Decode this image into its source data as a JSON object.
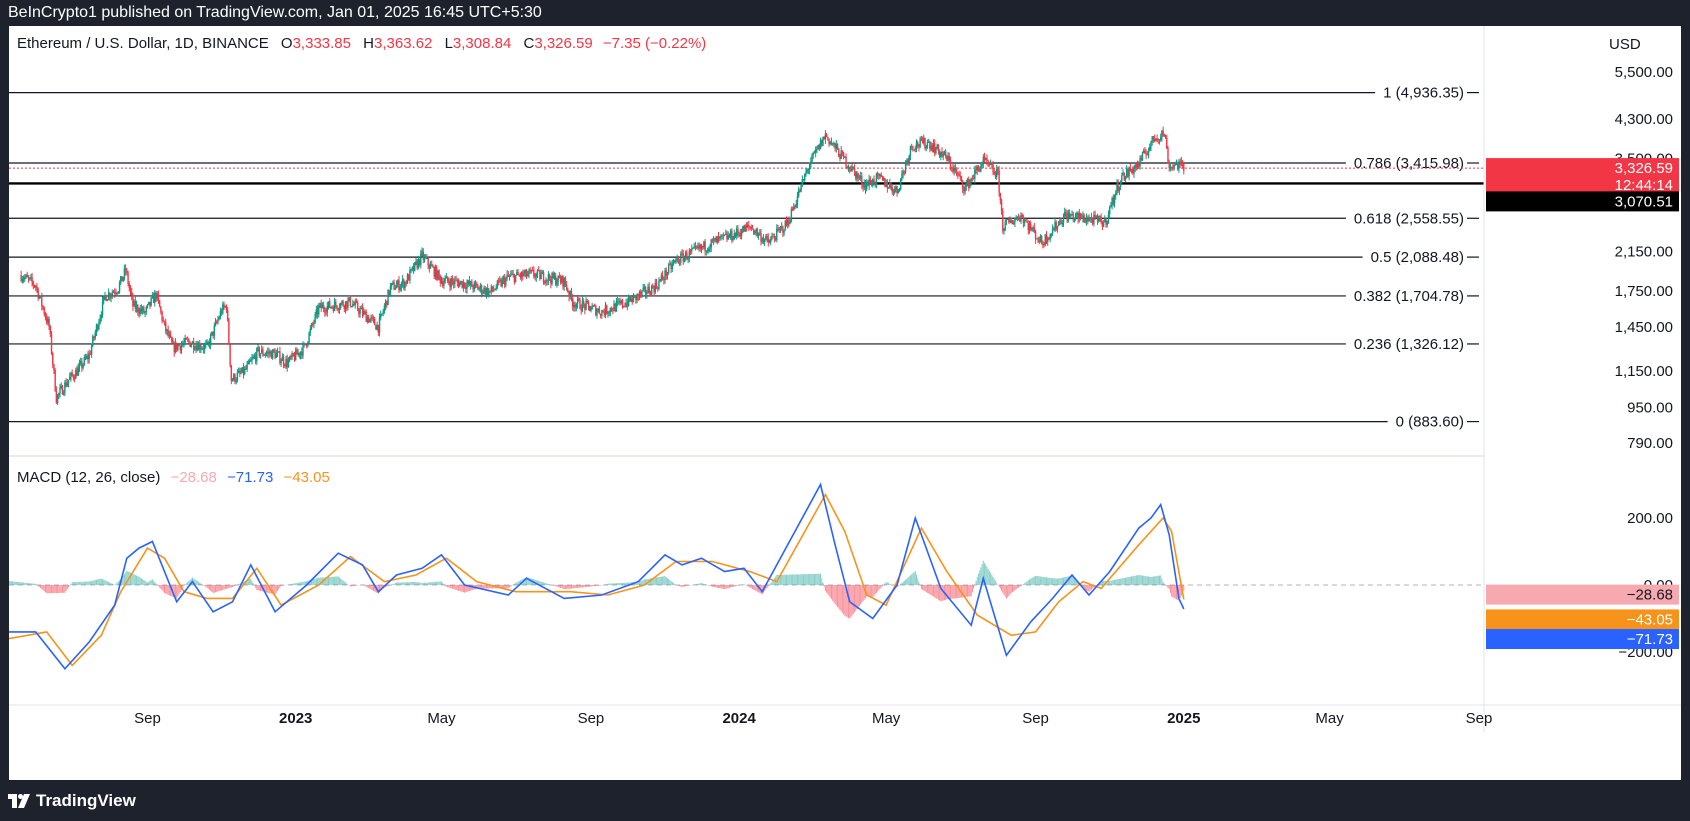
{
  "header": {
    "published": "BeInCrypto1 published on TradingView.com, Jan 01, 2025 16:45 UTC+5:30"
  },
  "footer": {
    "brand": "TradingView"
  },
  "price_legend": {
    "symbol": "Ethereum / U.S. Dollar, 1D, BINANCE",
    "o_label": "O",
    "o": "3,333.85",
    "h_label": "H",
    "h": "3,363.62",
    "l_label": "L",
    "l": "3,308.84",
    "c_label": "C",
    "c": "3,326.59",
    "change": "−7.35 (−0.22%)"
  },
  "macd_legend": {
    "label": "MACD (12, 26, close)",
    "hist": "−28.68",
    "macd": "−71.73",
    "signal": "−43.05"
  },
  "currency": "USD",
  "price_badge": {
    "price": "3,326.59",
    "countdown": "12:44:14"
  },
  "cursor_badge": "3,070.51",
  "macd_badges": {
    "hist": "−28.68",
    "signal": "−43.05",
    "macd": "−71.73"
  },
  "colors": {
    "up": "#089981",
    "down": "#f23645",
    "macd": "#2962ff",
    "signal": "#f7931a",
    "hist_neg_badge": "#f7a9b0"
  },
  "chart_data": [
    {
      "type": "candlestick",
      "price_scale": "log",
      "y_axis_ticks": [
        "5,500.00",
        "4,300.00",
        "3,500.00",
        "2,150.00",
        "1,750.00",
        "1,450.00",
        "1,150.00",
        "950.00",
        "790.00"
      ],
      "y_axis_values": [
        5500,
        4300,
        3500,
        2150,
        1750,
        1450,
        1150,
        950,
        790
      ],
      "x_axis_ticks": [
        "Sep",
        "2023",
        "May",
        "Sep",
        "2024",
        "May",
        "Sep",
        "2025",
        "May",
        "Sep"
      ],
      "x_axis_dates": [
        "2022-09-01",
        "2023-01-01",
        "2023-05-01",
        "2023-09-01",
        "2024-01-01",
        "2024-05-01",
        "2024-09-01",
        "2025-01-01",
        "2025-05-01",
        "2025-09-01"
      ],
      "x_range": [
        "2022-05-10",
        "2025-09-01"
      ],
      "fib_levels": [
        {
          "label": "1 (4,936.35)",
          "value": 4936.35
        },
        {
          "label": "0.786 (3,415.98)",
          "value": 3415.98
        },
        {
          "label": "0.618 (2,558.55)",
          "value": 2558.55
        },
        {
          "label": "0.5 (2,088.48)",
          "value": 2088.48
        },
        {
          "label": "0.382 (1,704.78)",
          "value": 1704.78
        },
        {
          "label": "0.236 (1,326.12)",
          "value": 1326.12
        },
        {
          "label": "0 (883.60)",
          "value": 883.6
        }
      ],
      "support_line": 3070.51,
      "last_price": 3326.59,
      "closes": [
        [
          "2022-05-20",
          1900
        ],
        [
          "2022-06-01",
          1800
        ],
        [
          "2022-06-12",
          1450
        ],
        [
          "2022-06-18",
          1000
        ],
        [
          "2022-06-28",
          1100
        ],
        [
          "2022-07-05",
          1150
        ],
        [
          "2022-07-15",
          1250
        ],
        [
          "2022-07-28",
          1700
        ],
        [
          "2022-08-08",
          1780
        ],
        [
          "2022-08-14",
          1950
        ],
        [
          "2022-08-20",
          1620
        ],
        [
          "2022-08-30",
          1560
        ],
        [
          "2022-09-08",
          1720
        ],
        [
          "2022-09-15",
          1450
        ],
        [
          "2022-09-22",
          1300
        ],
        [
          "2022-10-05",
          1340
        ],
        [
          "2022-10-20",
          1300
        ],
        [
          "2022-11-01",
          1580
        ],
        [
          "2022-11-05",
          1620
        ],
        [
          "2022-11-09",
          1100
        ],
        [
          "2022-11-20",
          1150
        ],
        [
          "2022-12-01",
          1270
        ],
        [
          "2022-12-15",
          1260
        ],
        [
          "2022-12-25",
          1200
        ],
        [
          "2023-01-08",
          1300
        ],
        [
          "2023-01-20",
          1600
        ],
        [
          "2023-02-15",
          1650
        ],
        [
          "2023-03-10",
          1450
        ],
        [
          "2023-03-20",
          1780
        ],
        [
          "2023-04-01",
          1830
        ],
        [
          "2023-04-15",
          2100
        ],
        [
          "2023-05-01",
          1850
        ],
        [
          "2023-05-20",
          1820
        ],
        [
          "2023-06-10",
          1740
        ],
        [
          "2023-06-25",
          1880
        ],
        [
          "2023-07-15",
          1910
        ],
        [
          "2023-08-10",
          1840
        ],
        [
          "2023-08-17",
          1650
        ],
        [
          "2023-09-10",
          1570
        ],
        [
          "2023-10-01",
          1650
        ],
        [
          "2023-10-25",
          1800
        ],
        [
          "2023-11-10",
          2050
        ],
        [
          "2023-12-10",
          2250
        ],
        [
          "2023-12-28",
          2350
        ],
        [
          "2024-01-10",
          2450
        ],
        [
          "2024-01-25",
          2250
        ],
        [
          "2024-02-10",
          2500
        ],
        [
          "2024-02-28",
          3400
        ],
        [
          "2024-03-12",
          3950
        ],
        [
          "2024-03-25",
          3550
        ],
        [
          "2024-04-13",
          3050
        ],
        [
          "2024-04-25",
          3150
        ],
        [
          "2024-05-10",
          2950
        ],
        [
          "2024-05-22",
          3750
        ],
        [
          "2024-06-05",
          3800
        ],
        [
          "2024-06-20",
          3500
        ],
        [
          "2024-07-05",
          3000
        ],
        [
          "2024-07-20",
          3450
        ],
        [
          "2024-08-01",
          3200
        ],
        [
          "2024-08-05",
          2450
        ],
        [
          "2024-08-20",
          2600
        ],
        [
          "2024-09-06",
          2250
        ],
        [
          "2024-09-25",
          2600
        ],
        [
          "2024-10-15",
          2550
        ],
        [
          "2024-10-28",
          2500
        ],
        [
          "2024-11-10",
          3150
        ],
        [
          "2024-11-25",
          3400
        ],
        [
          "2024-12-08",
          3900
        ],
        [
          "2024-12-16",
          4000
        ],
        [
          "2024-12-20",
          3350
        ],
        [
          "2024-12-26",
          3400
        ],
        [
          "2025-01-01",
          3326.59
        ]
      ]
    },
    {
      "type": "macd",
      "label": "MACD (12, 26, close)",
      "y_axis_ticks": [
        "200.00",
        "0.00",
        "−200.00"
      ],
      "y_axis_values": [
        200,
        0,
        -200
      ],
      "macd": [
        [
          "2022-05-10",
          -140
        ],
        [
          "2022-06-01",
          -140
        ],
        [
          "2022-06-25",
          -250
        ],
        [
          "2022-07-15",
          -170
        ],
        [
          "2022-08-05",
          -60
        ],
        [
          "2022-08-15",
          80
        ],
        [
          "2022-08-25",
          110
        ],
        [
          "2022-09-05",
          130
        ],
        [
          "2022-09-25",
          -50
        ],
        [
          "2022-10-08",
          10
        ],
        [
          "2022-10-25",
          -80
        ],
        [
          "2022-11-10",
          -50
        ],
        [
          "2022-11-25",
          60
        ],
        [
          "2022-12-15",
          -80
        ],
        [
          "2023-01-10",
          0
        ],
        [
          "2023-02-05",
          95
        ],
        [
          "2023-02-25",
          60
        ],
        [
          "2023-03-10",
          -20
        ],
        [
          "2023-03-25",
          30
        ],
        [
          "2023-04-15",
          50
        ],
        [
          "2023-05-01",
          90
        ],
        [
          "2023-05-20",
          0
        ],
        [
          "2023-06-25",
          -30
        ],
        [
          "2023-07-10",
          20
        ],
        [
          "2023-08-10",
          -40
        ],
        [
          "2023-09-10",
          -30
        ],
        [
          "2023-10-10",
          10
        ],
        [
          "2023-11-01",
          90
        ],
        [
          "2023-11-15",
          60
        ],
        [
          "2023-12-01",
          80
        ],
        [
          "2023-12-20",
          40
        ],
        [
          "2024-01-05",
          50
        ],
        [
          "2024-01-20",
          -20
        ],
        [
          "2024-02-10",
          120
        ],
        [
          "2024-03-08",
          300
        ],
        [
          "2024-03-20",
          120
        ],
        [
          "2024-04-01",
          -50
        ],
        [
          "2024-04-20",
          -100
        ],
        [
          "2024-05-10",
          0
        ],
        [
          "2024-05-25",
          200
        ],
        [
          "2024-06-15",
          -10
        ],
        [
          "2024-07-10",
          -120
        ],
        [
          "2024-07-20",
          20
        ],
        [
          "2024-08-08",
          -210
        ],
        [
          "2024-08-28",
          -110
        ],
        [
          "2024-09-15",
          -40
        ],
        [
          "2024-10-01",
          30
        ],
        [
          "2024-10-15",
          -30
        ],
        [
          "2024-11-01",
          40
        ],
        [
          "2024-11-25",
          170
        ],
        [
          "2024-12-05",
          200
        ],
        [
          "2024-12-13",
          240
        ],
        [
          "2024-12-20",
          150
        ],
        [
          "2024-12-28",
          -40
        ],
        [
          "2025-01-01",
          -71.73
        ]
      ],
      "signal": [
        [
          "2022-05-10",
          -160
        ],
        [
          "2022-06-10",
          -140
        ],
        [
          "2022-07-01",
          -240
        ],
        [
          "2022-07-25",
          -150
        ],
        [
          "2022-08-10",
          -20
        ],
        [
          "2022-09-01",
          110
        ],
        [
          "2022-09-15",
          80
        ],
        [
          "2022-10-01",
          -20
        ],
        [
          "2022-10-20",
          -40
        ],
        [
          "2022-11-10",
          -40
        ],
        [
          "2022-11-30",
          50
        ],
        [
          "2022-12-20",
          -60
        ],
        [
          "2023-01-20",
          0
        ],
        [
          "2023-02-15",
          85
        ],
        [
          "2023-03-15",
          10
        ],
        [
          "2023-04-10",
          30
        ],
        [
          "2023-05-05",
          80
        ],
        [
          "2023-05-30",
          10
        ],
        [
          "2023-07-01",
          -20
        ],
        [
          "2023-08-15",
          -20
        ],
        [
          "2023-09-15",
          -30
        ],
        [
          "2023-10-15",
          0
        ],
        [
          "2023-11-10",
          70
        ],
        [
          "2023-12-10",
          70
        ],
        [
          "2024-01-10",
          40
        ],
        [
          "2024-02-01",
          10
        ],
        [
          "2024-03-12",
          270
        ],
        [
          "2024-03-28",
          160
        ],
        [
          "2024-04-15",
          -30
        ],
        [
          "2024-05-01",
          -60
        ],
        [
          "2024-05-30",
          170
        ],
        [
          "2024-06-20",
          40
        ],
        [
          "2024-07-15",
          -90
        ],
        [
          "2024-08-12",
          -150
        ],
        [
          "2024-09-01",
          -140
        ],
        [
          "2024-09-20",
          -50
        ],
        [
          "2024-10-10",
          10
        ],
        [
          "2024-10-25",
          -10
        ],
        [
          "2024-11-25",
          120
        ],
        [
          "2024-12-15",
          200
        ],
        [
          "2024-12-22",
          160
        ],
        [
          "2025-01-01",
          -43.05
        ]
      ],
      "histogram_last": -28.68
    }
  ]
}
